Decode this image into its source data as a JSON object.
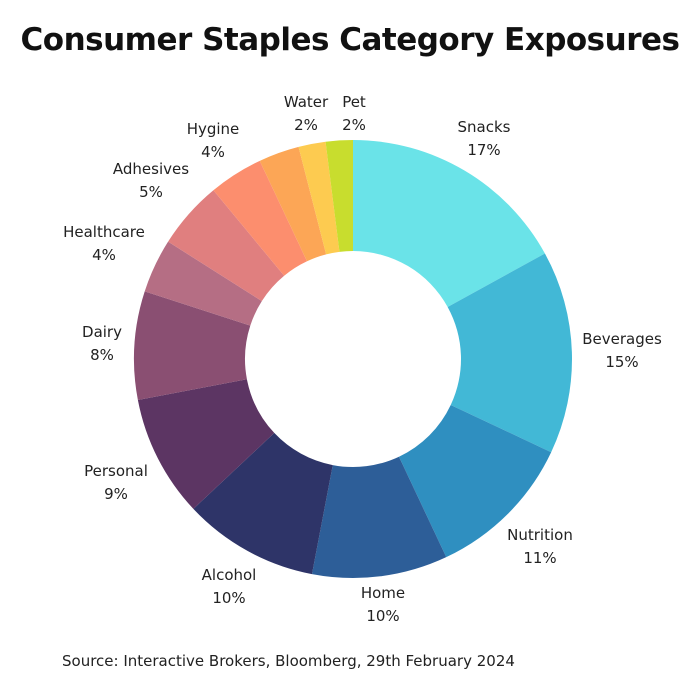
{
  "chart_data": {
    "type": "pie",
    "donut": true,
    "title": "Consumer Staples Category Exposures",
    "slices": [
      {
        "label": "Snacks",
        "value": 17,
        "value_label": "17%",
        "color": "#6ae3e8"
      },
      {
        "label": "Beverages",
        "value": 15,
        "value_label": "15%",
        "color": "#42b8d6"
      },
      {
        "label": "Nutrition",
        "value": 11,
        "value_label": "11%",
        "color": "#2f8fc0"
      },
      {
        "label": "Home",
        "value": 10,
        "value_label": "10%",
        "color": "#2d5e98"
      },
      {
        "label": "Alcohol",
        "value": 10,
        "value_label": "10%",
        "color": "#2e3468"
      },
      {
        "label": "Personal",
        "value": 9,
        "value_label": "9%",
        "color": "#5c3563"
      },
      {
        "label": "Dairy",
        "value": 8,
        "value_label": "8%",
        "color": "#8a4f72"
      },
      {
        "label": "Healthcare",
        "value": 4,
        "value_label": "4%",
        "color": "#b56e84"
      },
      {
        "label": "Adhesives",
        "value": 5,
        "value_label": "5%",
        "color": "#e07f7f"
      },
      {
        "label": "Hygine",
        "value": 4,
        "value_label": "4%",
        "color": "#fc8e6e"
      },
      {
        "label": "",
        "value": 3,
        "value_label": "",
        "color": "#fca656"
      },
      {
        "label": "Water",
        "value": 2,
        "value_label": "2%",
        "color": "#fdcb50"
      },
      {
        "label": "Pet",
        "value": 2,
        "value_label": "2%",
        "color": "#c8dd2e"
      }
    ]
  },
  "source": "Source: Interactive Brokers, Bloomberg, 29th February 2024"
}
